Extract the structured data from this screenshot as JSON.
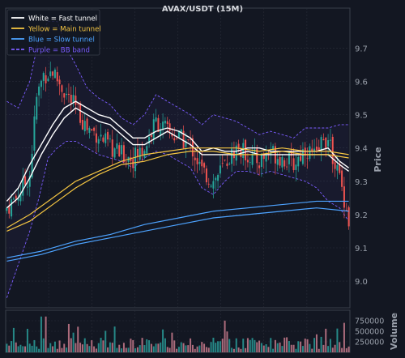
{
  "chart_data": {
    "type": "candlestick",
    "title": "AVAX/USDT (15M)",
    "ylabel": "Price",
    "volume_label": "Volume",
    "ylim": [
      8.92,
      9.82
    ],
    "yticks": [
      9.0,
      9.1,
      9.2,
      9.3,
      9.4,
      9.5,
      9.6,
      9.7
    ],
    "volume_ylim": [
      0,
      1000000
    ],
    "volume_ticks": [
      {
        "value": 250000,
        "label": "250000"
      },
      {
        "value": 500000,
        "label": "500000"
      },
      {
        "value": 750000,
        "label": "750000"
      }
    ],
    "grid": true,
    "legend_position": "top-left",
    "legend": [
      {
        "label": "White = Fast tunnel",
        "color": "#ffffff",
        "dash": false
      },
      {
        "label": "Yellow = Main tunnel",
        "color": "#f4c542",
        "dash": false
      },
      {
        "label": "Blue = Slow tunnel",
        "color": "#4da3ff",
        "dash": false
      },
      {
        "label": "Purple = BB band",
        "color": "#7b5cff",
        "dash": true
      }
    ],
    "colors": {
      "up": "#26a69a",
      "down": "#ef5350",
      "background": "#131722",
      "grid": "#2a2e39",
      "text": "#c8cbd2"
    },
    "num_candles": 150,
    "close_anchors": [
      [
        0,
        9.22
      ],
      [
        5,
        9.26
      ],
      [
        10,
        9.32
      ],
      [
        13,
        9.55
      ],
      [
        16,
        9.62
      ],
      [
        20,
        9.63
      ],
      [
        25,
        9.57
      ],
      [
        30,
        9.52
      ],
      [
        35,
        9.46
      ],
      [
        40,
        9.44
      ],
      [
        45,
        9.4
      ],
      [
        50,
        9.38
      ],
      [
        55,
        9.37
      ],
      [
        60,
        9.4
      ],
      [
        65,
        9.48
      ],
      [
        70,
        9.45
      ],
      [
        75,
        9.43
      ],
      [
        80,
        9.41
      ],
      [
        85,
        9.33
      ],
      [
        90,
        9.3
      ],
      [
        95,
        9.35
      ],
      [
        100,
        9.4
      ],
      [
        105,
        9.38
      ],
      [
        110,
        9.36
      ],
      [
        115,
        9.39
      ],
      [
        120,
        9.37
      ],
      [
        125,
        9.35
      ],
      [
        130,
        9.4
      ],
      [
        135,
        9.37
      ],
      [
        138,
        9.44
      ],
      [
        142,
        9.38
      ],
      [
        145,
        9.31
      ],
      [
        147,
        9.25
      ],
      [
        149,
        9.18
      ]
    ],
    "series": [
      {
        "name": "Fast tunnel (upper)",
        "color": "#ffffff",
        "width": 1.4,
        "points": [
          [
            0,
            9.24
          ],
          [
            5,
            9.28
          ],
          [
            10,
            9.35
          ],
          [
            15,
            9.41
          ],
          [
            20,
            9.47
          ],
          [
            25,
            9.52
          ],
          [
            30,
            9.54
          ],
          [
            35,
            9.52
          ],
          [
            40,
            9.5
          ],
          [
            45,
            9.49
          ],
          [
            50,
            9.46
          ],
          [
            55,
            9.43
          ],
          [
            60,
            9.43
          ],
          [
            65,
            9.45
          ],
          [
            70,
            9.46
          ],
          [
            75,
            9.45
          ],
          [
            80,
            9.43
          ],
          [
            85,
            9.39
          ],
          [
            90,
            9.4
          ],
          [
            95,
            9.39
          ],
          [
            100,
            9.39
          ],
          [
            105,
            9.4
          ],
          [
            110,
            9.4
          ],
          [
            115,
            9.39
          ],
          [
            120,
            9.39
          ],
          [
            125,
            9.39
          ],
          [
            130,
            9.39
          ],
          [
            135,
            9.39
          ],
          [
            140,
            9.4
          ],
          [
            145,
            9.36
          ],
          [
            149,
            9.34
          ]
        ]
      },
      {
        "name": "Fast tunnel (lower)",
        "color": "#ffffff",
        "width": 1.4,
        "points": [
          [
            0,
            9.22
          ],
          [
            5,
            9.25
          ],
          [
            10,
            9.31
          ],
          [
            15,
            9.38
          ],
          [
            20,
            9.44
          ],
          [
            25,
            9.49
          ],
          [
            30,
            9.52
          ],
          [
            35,
            9.5
          ],
          [
            40,
            9.48
          ],
          [
            45,
            9.47
          ],
          [
            50,
            9.44
          ],
          [
            55,
            9.41
          ],
          [
            60,
            9.41
          ],
          [
            65,
            9.43
          ],
          [
            70,
            9.45
          ],
          [
            75,
            9.43
          ],
          [
            80,
            9.41
          ],
          [
            85,
            9.38
          ],
          [
            90,
            9.38
          ],
          [
            95,
            9.38
          ],
          [
            100,
            9.38
          ],
          [
            105,
            9.39
          ],
          [
            110,
            9.38
          ],
          [
            115,
            9.38
          ],
          [
            120,
            9.38
          ],
          [
            125,
            9.38
          ],
          [
            130,
            9.38
          ],
          [
            135,
            9.38
          ],
          [
            140,
            9.38
          ],
          [
            145,
            9.35
          ],
          [
            149,
            9.33
          ]
        ]
      },
      {
        "name": "Main tunnel (upper)",
        "color": "#f4c542",
        "width": 1.2,
        "points": [
          [
            0,
            9.16
          ],
          [
            10,
            9.2
          ],
          [
            20,
            9.25
          ],
          [
            30,
            9.3
          ],
          [
            40,
            9.33
          ],
          [
            50,
            9.36
          ],
          [
            60,
            9.38
          ],
          [
            70,
            9.39
          ],
          [
            80,
            9.4
          ],
          [
            90,
            9.4
          ],
          [
            100,
            9.4
          ],
          [
            110,
            9.39
          ],
          [
            120,
            9.4
          ],
          [
            130,
            9.39
          ],
          [
            140,
            9.39
          ],
          [
            149,
            9.38
          ]
        ]
      },
      {
        "name": "Main tunnel (lower)",
        "color": "#f4c542",
        "width": 1.2,
        "points": [
          [
            0,
            9.15
          ],
          [
            10,
            9.18
          ],
          [
            20,
            9.23
          ],
          [
            30,
            9.28
          ],
          [
            40,
            9.32
          ],
          [
            50,
            9.35
          ],
          [
            60,
            9.36
          ],
          [
            70,
            9.38
          ],
          [
            80,
            9.39
          ],
          [
            90,
            9.39
          ],
          [
            100,
            9.38
          ],
          [
            110,
            9.38
          ],
          [
            120,
            9.39
          ],
          [
            130,
            9.38
          ],
          [
            140,
            9.38
          ],
          [
            149,
            9.37
          ]
        ]
      },
      {
        "name": "Slow tunnel (upper)",
        "color": "#4da3ff",
        "width": 1.2,
        "points": [
          [
            0,
            9.07
          ],
          [
            15,
            9.09
          ],
          [
            30,
            9.12
          ],
          [
            45,
            9.14
          ],
          [
            60,
            9.17
          ],
          [
            75,
            9.19
          ],
          [
            90,
            9.21
          ],
          [
            105,
            9.22
          ],
          [
            120,
            9.23
          ],
          [
            135,
            9.24
          ],
          [
            149,
            9.24
          ]
        ]
      },
      {
        "name": "Slow tunnel (lower)",
        "color": "#4da3ff",
        "width": 1.2,
        "points": [
          [
            0,
            9.06
          ],
          [
            15,
            9.08
          ],
          [
            30,
            9.11
          ],
          [
            45,
            9.13
          ],
          [
            60,
            9.15
          ],
          [
            75,
            9.17
          ],
          [
            90,
            9.19
          ],
          [
            105,
            9.2
          ],
          [
            120,
            9.21
          ],
          [
            135,
            9.22
          ],
          [
            149,
            9.21
          ]
        ]
      },
      {
        "name": "BB upper",
        "color": "#7b5cff",
        "width": 0.9,
        "dash": true,
        "points": [
          [
            0,
            9.54
          ],
          [
            5,
            9.52
          ],
          [
            10,
            9.6
          ],
          [
            14,
            9.73
          ],
          [
            18,
            9.78
          ],
          [
            22,
            9.78
          ],
          [
            26,
            9.7
          ],
          [
            30,
            9.65
          ],
          [
            35,
            9.58
          ],
          [
            40,
            9.55
          ],
          [
            45,
            9.53
          ],
          [
            50,
            9.49
          ],
          [
            55,
            9.47
          ],
          [
            60,
            9.5
          ],
          [
            65,
            9.56
          ],
          [
            70,
            9.54
          ],
          [
            75,
            9.52
          ],
          [
            80,
            9.5
          ],
          [
            85,
            9.47
          ],
          [
            90,
            9.5
          ],
          [
            95,
            9.49
          ],
          [
            100,
            9.48
          ],
          [
            105,
            9.46
          ],
          [
            110,
            9.44
          ],
          [
            115,
            9.45
          ],
          [
            120,
            9.44
          ],
          [
            125,
            9.43
          ],
          [
            130,
            9.46
          ],
          [
            135,
            9.46
          ],
          [
            140,
            9.46
          ],
          [
            145,
            9.47
          ],
          [
            149,
            9.47
          ]
        ]
      },
      {
        "name": "BB lower",
        "color": "#7b5cff",
        "width": 0.9,
        "dash": true,
        "points": [
          [
            0,
            8.95
          ],
          [
            5,
            9.05
          ],
          [
            10,
            9.15
          ],
          [
            14,
            9.25
          ],
          [
            18,
            9.37
          ],
          [
            22,
            9.4
          ],
          [
            26,
            9.42
          ],
          [
            30,
            9.42
          ],
          [
            35,
            9.4
          ],
          [
            40,
            9.38
          ],
          [
            45,
            9.37
          ],
          [
            50,
            9.36
          ],
          [
            55,
            9.34
          ],
          [
            60,
            9.37
          ],
          [
            65,
            9.39
          ],
          [
            70,
            9.38
          ],
          [
            75,
            9.36
          ],
          [
            80,
            9.34
          ],
          [
            85,
            9.28
          ],
          [
            90,
            9.26
          ],
          [
            95,
            9.3
          ],
          [
            100,
            9.33
          ],
          [
            105,
            9.33
          ],
          [
            110,
            9.32
          ],
          [
            115,
            9.33
          ],
          [
            120,
            9.32
          ],
          [
            125,
            9.31
          ],
          [
            130,
            9.3
          ],
          [
            135,
            9.28
          ],
          [
            140,
            9.24
          ],
          [
            145,
            9.22
          ],
          [
            149,
            9.18
          ]
        ]
      }
    ]
  }
}
